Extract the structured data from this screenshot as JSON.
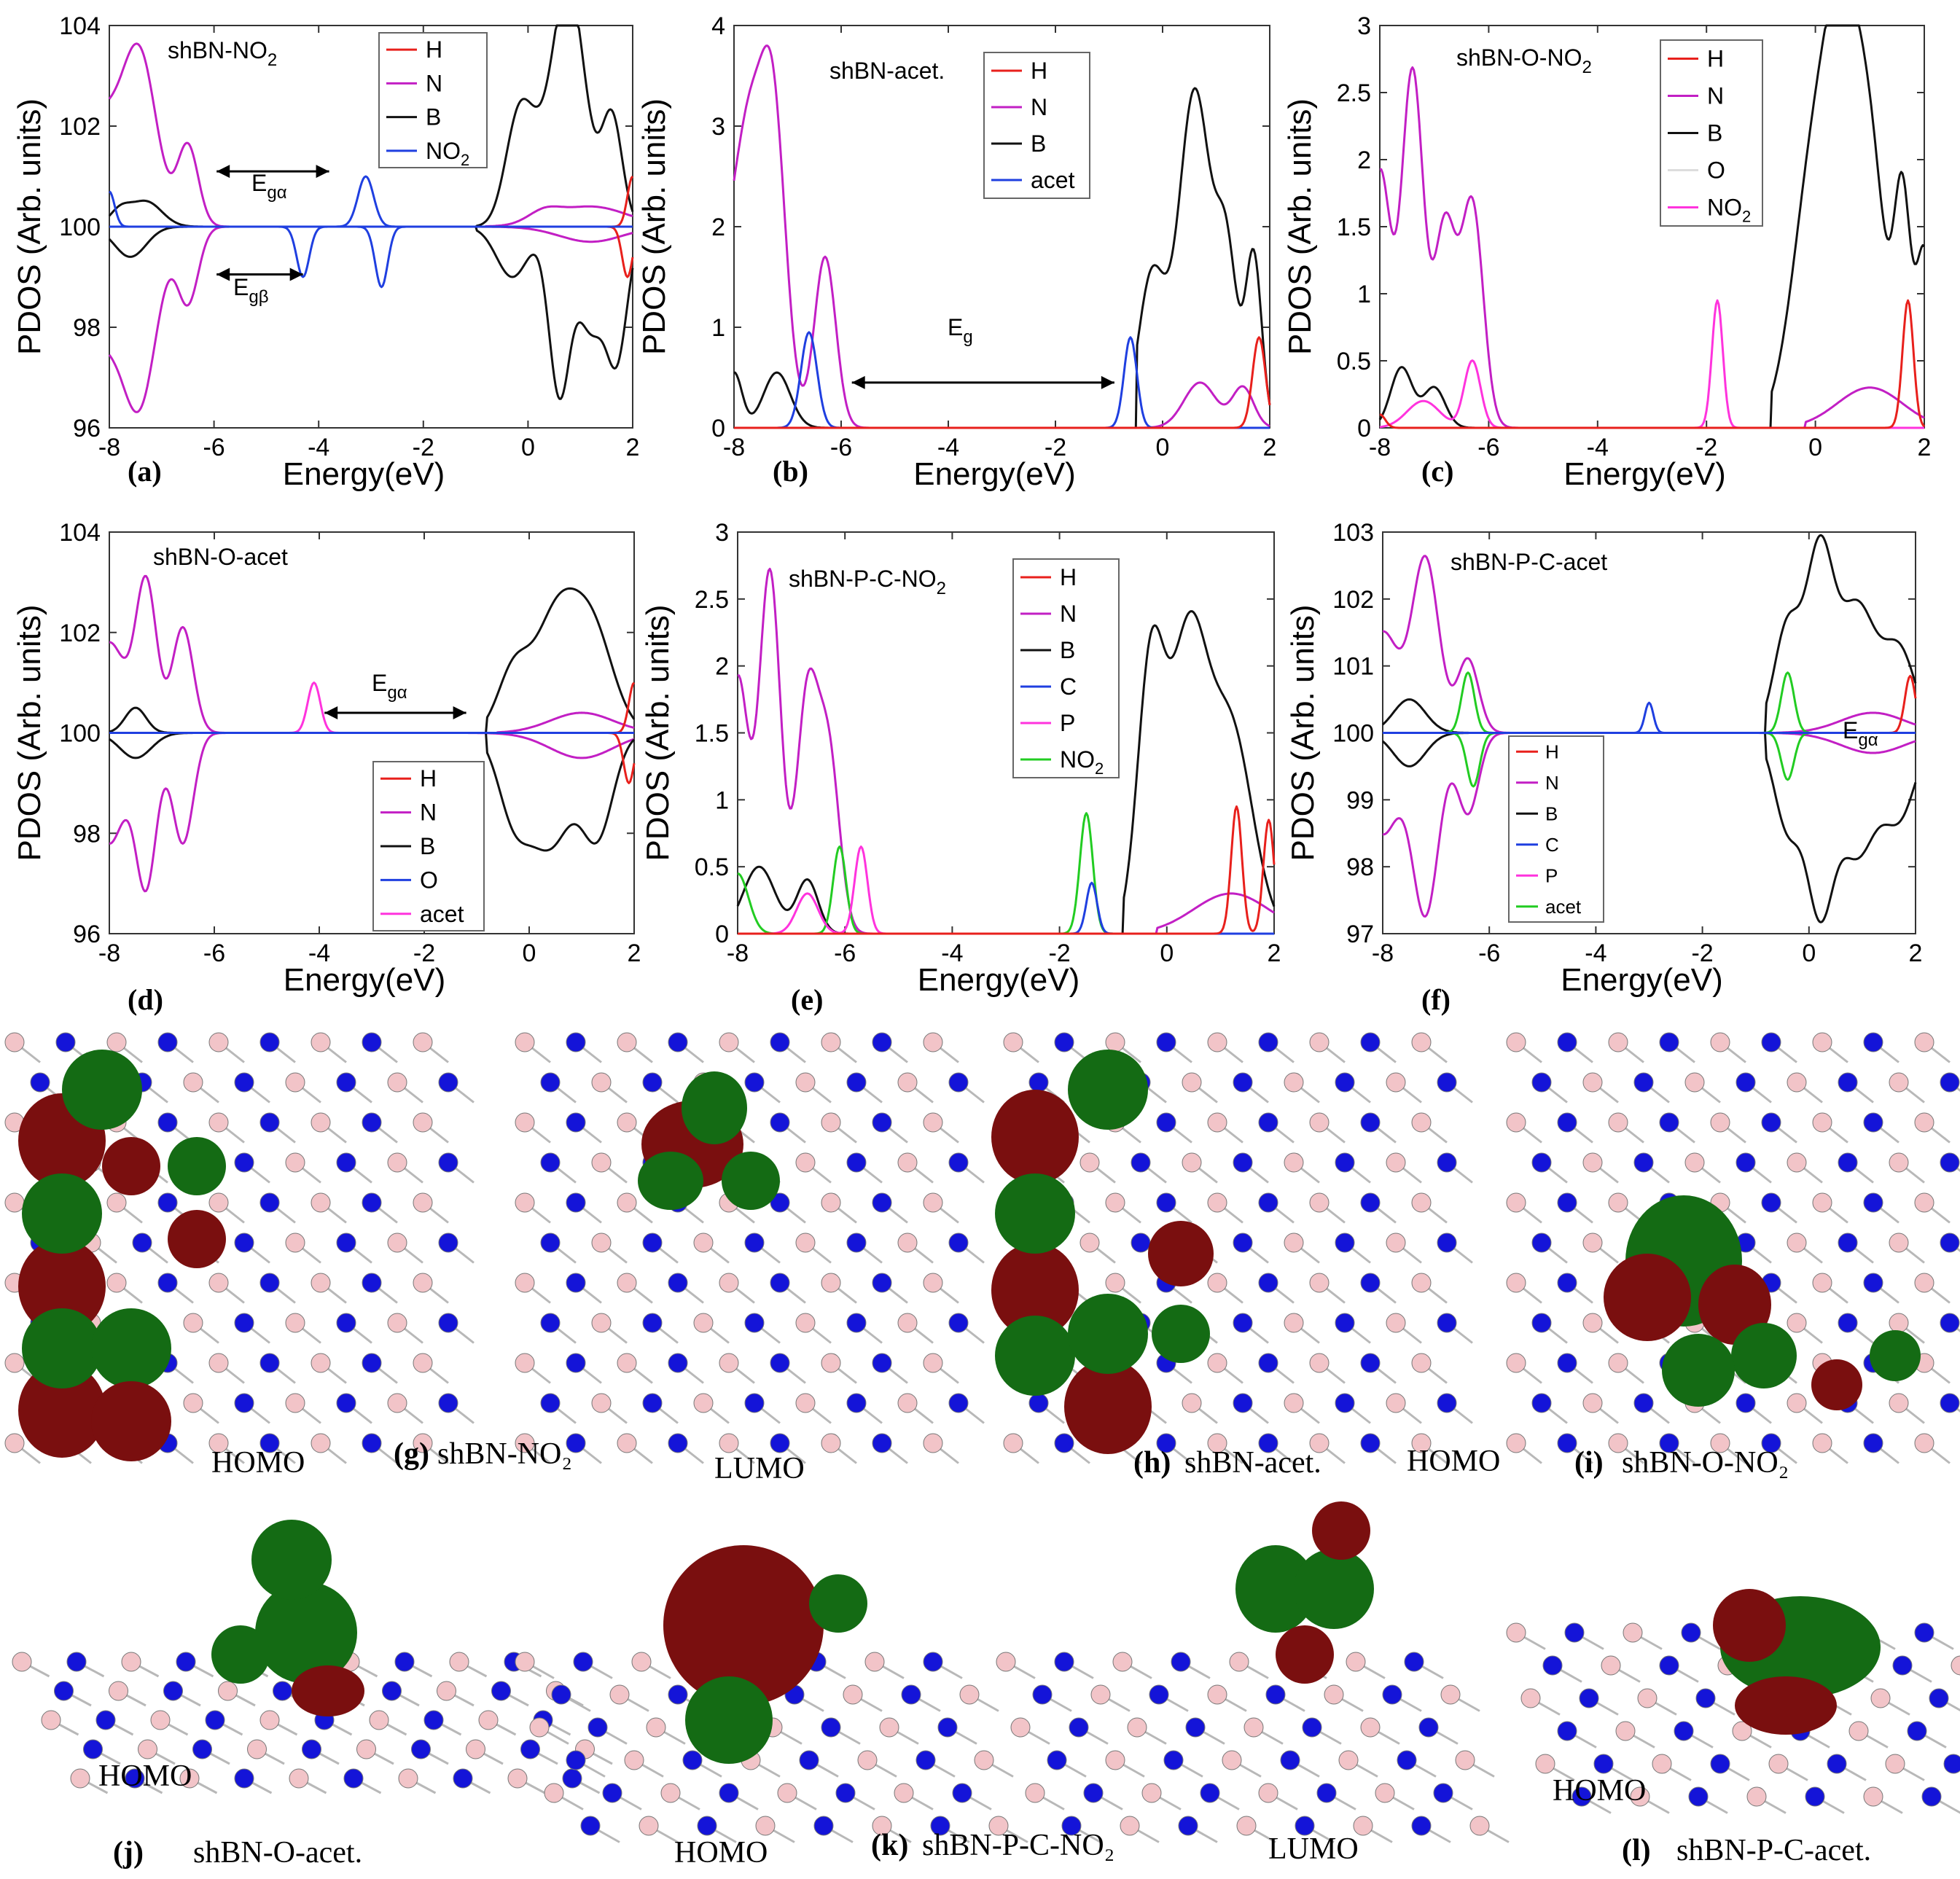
{
  "colors": {
    "H": "#e8201c",
    "N": "#c21fc4",
    "B": "#111111",
    "NO2": "#1f3fe0",
    "acet": "#1f3fe0",
    "O": "#dddddd",
    "NO2_pink": "#ff33dd",
    "C": "#1f3fe0",
    "P": "#ff33dd",
    "green": "#22cc22"
  },
  "chart_data": [
    {
      "type": "line",
      "panel": "(a)",
      "title": "shBN-NO",
      "title_sub": "2",
      "xlabel": "Energy(eV)",
      "ylabel": "PDOS (Arb. units)",
      "xlim": [
        -8,
        2
      ],
      "ylim": [
        96,
        104
      ],
      "xticks": [
        "-8",
        "-6",
        "-4",
        "-2",
        "0",
        "2"
      ],
      "yticks": [
        "96",
        "98",
        "100",
        "102",
        "104"
      ],
      "legend": [
        "H",
        "N",
        "B",
        "NO2"
      ],
      "annotations": [
        "Egα",
        "Egβ"
      ]
    },
    {
      "type": "line",
      "panel": "(b)",
      "title": "shBN-acet.",
      "xlabel": "Energy(eV)",
      "ylabel": "PDOS (Arb. units)",
      "xlim": [
        -8,
        2
      ],
      "ylim": [
        0,
        4
      ],
      "xticks": [
        "-8",
        "-6",
        "-4",
        "-2",
        "0",
        "2"
      ],
      "yticks": [
        "0",
        "1",
        "2",
        "3",
        "4"
      ],
      "legend": [
        "H",
        "N",
        "B",
        "acet"
      ],
      "annotations": [
        "Eg"
      ]
    },
    {
      "type": "line",
      "panel": "(c)",
      "title": "shBN-O-NO",
      "title_sub": "2",
      "xlabel": "Energy(eV)",
      "ylabel": "PDOS (Arb. units)",
      "xlim": [
        -8,
        2
      ],
      "ylim": [
        0,
        3
      ],
      "xticks": [
        "-8",
        "-6",
        "-4",
        "-2",
        "0",
        "2"
      ],
      "yticks": [
        "0",
        "0.5",
        "1",
        "1.5",
        "2",
        "2.5",
        "3"
      ],
      "legend": [
        "H",
        "N",
        "B",
        "O",
        "NO2"
      ]
    },
    {
      "type": "line",
      "panel": "(d)",
      "title": "shBN-O-acet",
      "xlabel": "Energy(eV)",
      "ylabel": "PDOS (Arb. units)",
      "xlim": [
        -8,
        2
      ],
      "ylim": [
        96,
        104
      ],
      "xticks": [
        "-8",
        "-6",
        "-4",
        "-2",
        "0",
        "2"
      ],
      "yticks": [
        "96",
        "98",
        "100",
        "102",
        "104"
      ],
      "legend": [
        "H",
        "N",
        "B",
        "O",
        "acet"
      ],
      "annotations": [
        "Egα"
      ]
    },
    {
      "type": "line",
      "panel": "(e)",
      "title": "shBN-P-C-NO",
      "title_sub": "2",
      "xlabel": "Energy(eV)",
      "ylabel": "PDOS (Arb. units)",
      "xlim": [
        -8,
        2
      ],
      "ylim": [
        0,
        3
      ],
      "xticks": [
        "-8",
        "-6",
        "-4",
        "-2",
        "0",
        "2"
      ],
      "yticks": [
        "0",
        "0.5",
        "1",
        "1.5",
        "2",
        "2.5",
        "3"
      ],
      "legend": [
        "H",
        "N",
        "B",
        "C",
        "P",
        "NO2"
      ]
    },
    {
      "type": "line",
      "panel": "(f)",
      "title": "shBN-P-C-acet",
      "xlabel": "Energy(eV)",
      "ylabel": "PDOS (Arb. units)",
      "xlim": [
        -8,
        2
      ],
      "ylim": [
        97,
        103
      ],
      "xticks": [
        "-8",
        "-6",
        "-4",
        "-2",
        "0",
        "2"
      ],
      "yticks": [
        "97",
        "98",
        "99",
        "100",
        "101",
        "102",
        "103"
      ],
      "legend": [
        "H",
        "N",
        "B",
        "C",
        "P",
        "acet"
      ],
      "annotations": [
        "Egα"
      ]
    }
  ],
  "captions": {
    "g": {
      "letter": "(g)",
      "text": "shBN-NO₂",
      "homo": "HOMO",
      "lumo": "LUMO"
    },
    "h": {
      "letter": "(h)",
      "text": "shBN-acet.",
      "homo": "HOMO"
    },
    "i": {
      "letter": "(i)",
      "text": "shBN-O-NO₂"
    },
    "j": {
      "letter": "(j)",
      "text": "shBN-O-acet.",
      "homo": "HOMO"
    },
    "k": {
      "letter": "(k)",
      "text": "shBN-P-C-NO₂",
      "homo": "HOMO",
      "lumo": "LUMO"
    },
    "l": {
      "letter": "(l)",
      "text": "shBN-P-C-acet.",
      "homo": "HOMO"
    }
  }
}
